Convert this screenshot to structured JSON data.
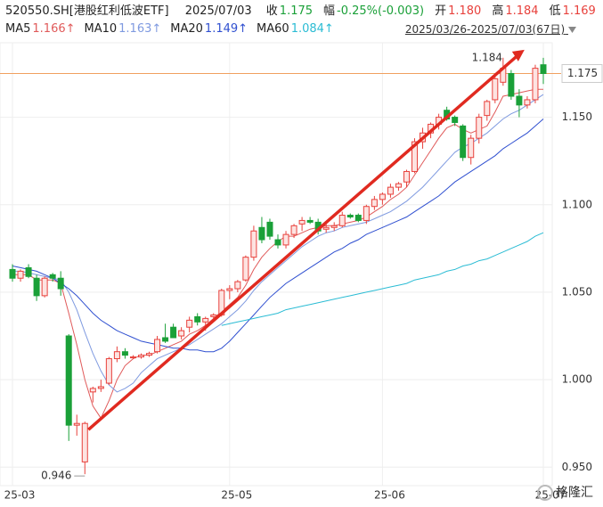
{
  "header": {
    "code": "520550.SH[港股红利低波ETF]",
    "date": "2025/07/03",
    "fields": [
      {
        "label": "收",
        "value": "1.175",
        "color": "#1aa038"
      },
      {
        "label": "幅",
        "value": "-0.25%(-0.003)",
        "color": "#1aa038"
      },
      {
        "label": "开",
        "value": "1.180",
        "color": "#e8413c"
      },
      {
        "label": "高",
        "value": "1.184",
        "color": "#e8413c"
      },
      {
        "label": "低",
        "value": "1.169",
        "color": "#e8413c"
      }
    ],
    "range": "2025/03/26-2025/07/03(67日)"
  },
  "chart_data": {
    "type": "candlestick",
    "up_color": "#e8413c",
    "down_color": "#1aa038",
    "categories": [
      "25-03",
      null,
      null,
      null,
      null,
      null,
      null,
      null,
      null,
      null,
      null,
      null,
      null,
      null,
      null,
      null,
      null,
      null,
      null,
      null,
      null,
      null,
      null,
      null,
      null,
      null,
      null,
      "25-05",
      null,
      null,
      null,
      null,
      null,
      null,
      null,
      null,
      null,
      null,
      null,
      null,
      null,
      null,
      null,
      null,
      null,
      null,
      "25-06",
      null,
      null,
      null,
      null,
      null,
      null,
      null,
      null,
      null,
      null,
      null,
      null,
      null,
      null,
      null,
      null,
      null,
      null,
      null,
      "25-07"
    ],
    "candles": [
      [
        1.063,
        1.066,
        1.056,
        1.058
      ],
      [
        1.058,
        1.063,
        1.056,
        1.062
      ],
      [
        1.064,
        1.066,
        1.058,
        1.059
      ],
      [
        1.058,
        1.06,
        1.045,
        1.048
      ],
      [
        1.048,
        1.059,
        1.047,
        1.058
      ],
      [
        1.06,
        1.061,
        1.056,
        1.058
      ],
      [
        1.058,
        1.062,
        1.048,
        1.052
      ],
      [
        1.025,
        1.026,
        0.965,
        0.974
      ],
      [
        0.974,
        0.98,
        0.968,
        0.975
      ],
      [
        0.953,
        0.976,
        0.946,
        0.975
      ],
      [
        0.993,
        0.996,
        0.987,
        0.995
      ],
      [
        0.995,
        1.0,
        0.993,
        0.996
      ],
      [
        0.998,
        1.013,
        0.997,
        1.012
      ],
      [
        1.012,
        1.019,
        1.01,
        1.016
      ],
      [
        1.016,
        1.018,
        1.012,
        1.014
      ],
      [
        1.013,
        1.014,
        1.012,
        1.013
      ],
      [
        1.013,
        1.015,
        1.012,
        1.014
      ],
      [
        1.014,
        1.016,
        1.013,
        1.015
      ],
      [
        1.016,
        1.025,
        1.015,
        1.023
      ],
      [
        1.024,
        1.032,
        1.021,
        1.022
      ],
      [
        1.03,
        1.032,
        1.024,
        1.024
      ],
      [
        1.025,
        1.03,
        1.023,
        1.028
      ],
      [
        1.03,
        1.036,
        1.027,
        1.034
      ],
      [
        1.036,
        1.038,
        1.031,
        1.033
      ],
      [
        1.033,
        1.036,
        1.028,
        1.035
      ],
      [
        1.036,
        1.038,
        1.033,
        1.037
      ],
      [
        1.037,
        1.052,
        1.036,
        1.051
      ],
      [
        1.051,
        1.054,
        1.046,
        1.052
      ],
      [
        1.052,
        1.057,
        1.05,
        1.056
      ],
      [
        1.057,
        1.071,
        1.056,
        1.07
      ],
      [
        1.07,
        1.088,
        1.068,
        1.085
      ],
      [
        1.087,
        1.093,
        1.078,
        1.08
      ],
      [
        1.09,
        1.092,
        1.08,
        1.082
      ],
      [
        1.08,
        1.083,
        1.075,
        1.077
      ],
      [
        1.077,
        1.085,
        1.075,
        1.083
      ],
      [
        1.083,
        1.089,
        1.081,
        1.088
      ],
      [
        1.089,
        1.093,
        1.085,
        1.091
      ],
      [
        1.091,
        1.093,
        1.089,
        1.09
      ],
      [
        1.09,
        1.092,
        1.083,
        1.085
      ],
      [
        1.086,
        1.089,
        1.084,
        1.087
      ],
      [
        1.087,
        1.09,
        1.085,
        1.088
      ],
      [
        1.088,
        1.096,
        1.087,
        1.094
      ],
      [
        1.094,
        1.095,
        1.092,
        1.093
      ],
      [
        1.094,
        1.095,
        1.09,
        1.091
      ],
      [
        1.091,
        1.1,
        1.089,
        1.099
      ],
      [
        1.099,
        1.105,
        1.097,
        1.103
      ],
      [
        1.103,
        1.107,
        1.1,
        1.106
      ],
      [
        1.106,
        1.112,
        1.104,
        1.11
      ],
      [
        1.11,
        1.113,
        1.108,
        1.112
      ],
      [
        1.113,
        1.12,
        1.11,
        1.119
      ],
      [
        1.119,
        1.138,
        1.118,
        1.136
      ],
      [
        1.136,
        1.144,
        1.132,
        1.141
      ],
      [
        1.141,
        1.147,
        1.138,
        1.146
      ],
      [
        1.146,
        1.152,
        1.143,
        1.15
      ],
      [
        1.154,
        1.156,
        1.148,
        1.149
      ],
      [
        1.15,
        1.151,
        1.145,
        1.147
      ],
      [
        1.145,
        1.146,
        1.125,
        1.127
      ],
      [
        1.127,
        1.14,
        1.123,
        1.138
      ],
      [
        1.138,
        1.152,
        1.135,
        1.15
      ],
      [
        1.151,
        1.16,
        1.148,
        1.159
      ],
      [
        1.16,
        1.175,
        1.158,
        1.172
      ],
      [
        1.17,
        1.184,
        1.168,
        1.178
      ],
      [
        1.175,
        1.177,
        1.16,
        1.162
      ],
      [
        1.162,
        1.166,
        1.15,
        1.157
      ],
      [
        1.157,
        1.162,
        1.155,
        1.16
      ],
      [
        1.16,
        1.18,
        1.158,
        1.178
      ],
      [
        1.18,
        1.184,
        1.169,
        1.175
      ]
    ],
    "series": [
      {
        "name": "MA5",
        "color": "#e05a5a",
        "legend_label": "1.166↑",
        "values": [
          1.06,
          1.06,
          1.06,
          1.057,
          1.057,
          1.057,
          1.055,
          1.038,
          1.02,
          1.0,
          0.985,
          0.978,
          0.988,
          1.0,
          1.008,
          1.012,
          1.014,
          1.014,
          1.016,
          1.018,
          1.02,
          1.022,
          1.026,
          1.028,
          1.031,
          1.035,
          1.039,
          1.043,
          1.047,
          1.054,
          1.063,
          1.07,
          1.075,
          1.079,
          1.082,
          1.082,
          1.084,
          1.086,
          1.087,
          1.088,
          1.088,
          1.089,
          1.09,
          1.091,
          1.093,
          1.096,
          1.099,
          1.103,
          1.106,
          1.11,
          1.117,
          1.124,
          1.131,
          1.138,
          1.144,
          1.146,
          1.143,
          1.141,
          1.143,
          1.145,
          1.153,
          1.162,
          1.163,
          1.164,
          1.165,
          1.166,
          1.166
        ]
      },
      {
        "name": "MA10",
        "color": "#7f9ae0",
        "legend_label": "1.163↑",
        "values": [
          1.062,
          1.062,
          1.061,
          1.06,
          1.059,
          1.058,
          1.057,
          1.05,
          1.04,
          1.027,
          1.015,
          1.005,
          0.997,
          0.993,
          0.995,
          0.998,
          1.004,
          1.008,
          1.012,
          1.014,
          1.016,
          1.018,
          1.02,
          1.023,
          1.026,
          1.029,
          1.032,
          1.036,
          1.04,
          1.045,
          1.051,
          1.056,
          1.06,
          1.064,
          1.068,
          1.072,
          1.076,
          1.079,
          1.082,
          1.084,
          1.085,
          1.087,
          1.088,
          1.089,
          1.09,
          1.092,
          1.094,
          1.096,
          1.099,
          1.102,
          1.106,
          1.11,
          1.115,
          1.12,
          1.125,
          1.13,
          1.133,
          1.135,
          1.138,
          1.141,
          1.145,
          1.149,
          1.152,
          1.154,
          1.157,
          1.16,
          1.163
        ]
      },
      {
        "name": "MA20",
        "color": "#3050d0",
        "legend_label": "1.149↑",
        "values": [
          1.065,
          1.064,
          1.063,
          1.062,
          1.06,
          1.058,
          1.055,
          1.052,
          1.048,
          1.043,
          1.038,
          1.034,
          1.031,
          1.028,
          1.026,
          1.024,
          1.022,
          1.021,
          1.02,
          1.019,
          1.018,
          1.018,
          1.017,
          1.017,
          1.016,
          1.016,
          1.018,
          1.022,
          1.027,
          1.032,
          1.037,
          1.042,
          1.047,
          1.051,
          1.055,
          1.058,
          1.061,
          1.064,
          1.067,
          1.07,
          1.073,
          1.075,
          1.078,
          1.08,
          1.083,
          1.085,
          1.087,
          1.089,
          1.091,
          1.093,
          1.096,
          1.099,
          1.102,
          1.105,
          1.109,
          1.113,
          1.116,
          1.119,
          1.122,
          1.125,
          1.128,
          1.132,
          1.135,
          1.138,
          1.141,
          1.145,
          1.149
        ]
      },
      {
        "name": "MA60",
        "color": "#2bbcd4",
        "legend_label": "1.084↑",
        "values": [
          null,
          null,
          null,
          null,
          null,
          null,
          null,
          null,
          null,
          null,
          null,
          null,
          null,
          null,
          null,
          null,
          null,
          null,
          null,
          null,
          null,
          null,
          null,
          null,
          null,
          null,
          1.031,
          1.032,
          1.033,
          1.034,
          1.035,
          1.036,
          1.037,
          1.038,
          1.04,
          1.041,
          1.042,
          1.043,
          1.044,
          1.045,
          1.046,
          1.047,
          1.048,
          1.049,
          1.05,
          1.051,
          1.052,
          1.053,
          1.054,
          1.055,
          1.057,
          1.058,
          1.059,
          1.06,
          1.062,
          1.063,
          1.065,
          1.066,
          1.068,
          1.069,
          1.071,
          1.073,
          1.075,
          1.077,
          1.079,
          1.082,
          1.084
        ]
      }
    ],
    "ylim": [
      0.942,
      1.189
    ],
    "yticks": [
      {
        "value": 0.95,
        "label": "0.950"
      },
      {
        "value": 1.0,
        "label": "1.000"
      },
      {
        "value": 1.05,
        "label": "1.050"
      },
      {
        "value": 1.1,
        "label": "1.100"
      },
      {
        "value": 1.15,
        "label": "1.150"
      }
    ],
    "grid": true,
    "last_price": {
      "value": 1.175,
      "label": "1.175"
    },
    "annotations": [
      {
        "index": 61,
        "label": "1.184"
      },
      {
        "index": 9,
        "label": "0.946"
      }
    ],
    "watermark": "格隆汇"
  }
}
